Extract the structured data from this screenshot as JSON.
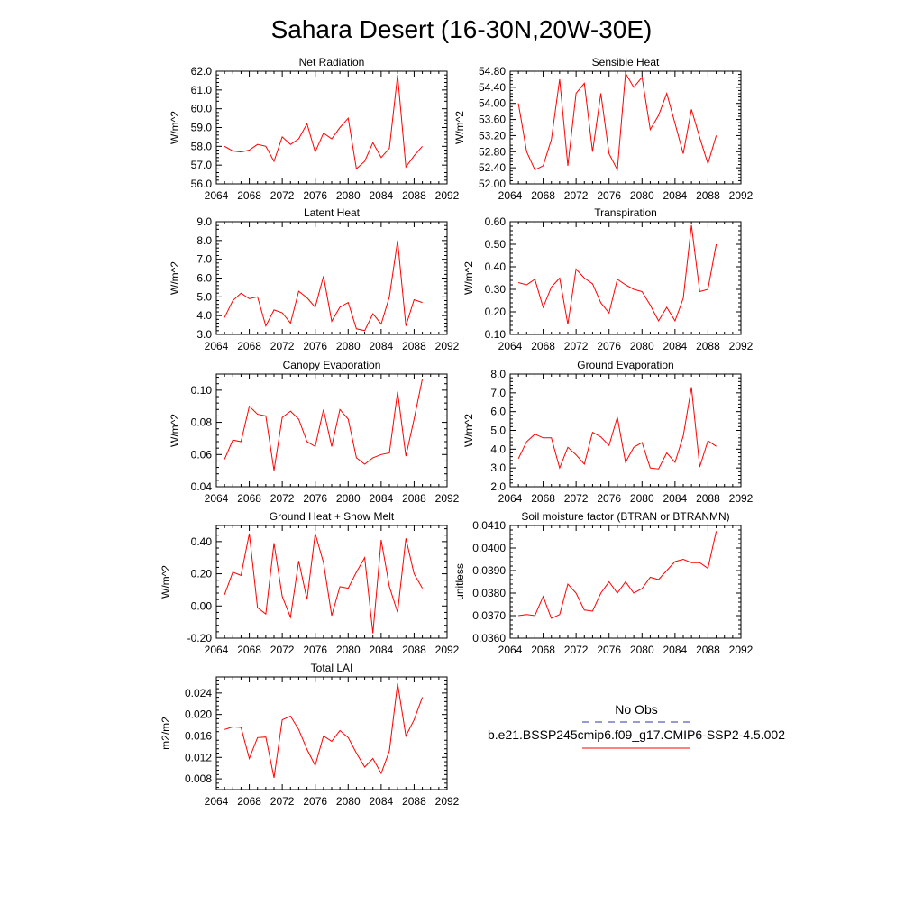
{
  "title": "Sahara Desert (16-30N,20W-30E)",
  "colors": {
    "model": "#ff0000",
    "obs": "#3333aa",
    "axis": "#000000"
  },
  "legend": {
    "obs_label": "No Obs",
    "model_label": "b.e21.BSSP245cmip6.f09_g17.CMIP6-SSP2-4.5.002"
  },
  "chart_data": [
    {
      "type": "line",
      "title": "Net Radiation",
      "ylabel": "W/m^2",
      "xlim": [
        2064,
        2092
      ],
      "xticks": [
        2064,
        2068,
        2072,
        2076,
        2080,
        2084,
        2088,
        2092
      ],
      "ylim": [
        56.0,
        62.0
      ],
      "yticks": [
        "56.0",
        "57.0",
        "58.0",
        "59.0",
        "60.0",
        "61.0",
        "62.0"
      ],
      "x": [
        2065,
        2066,
        2067,
        2068,
        2069,
        2070,
        2071,
        2072,
        2073,
        2074,
        2075,
        2076,
        2077,
        2078,
        2079,
        2080,
        2081,
        2082,
        2083,
        2084,
        2085,
        2086,
        2087,
        2088,
        2089
      ],
      "series": [
        {
          "values": [
            58.0,
            57.75,
            57.7,
            57.8,
            58.1,
            58.0,
            57.2,
            58.5,
            58.1,
            58.4,
            59.2,
            57.7,
            58.7,
            58.4,
            59.0,
            59.5,
            56.8,
            57.2,
            58.2,
            57.4,
            57.9,
            61.8,
            56.9,
            57.5,
            58.0
          ]
        }
      ]
    },
    {
      "type": "line",
      "title": "Sensible Heat",
      "ylabel": "W/m^2",
      "xlim": [
        2064,
        2092
      ],
      "xticks": [
        2064,
        2068,
        2072,
        2076,
        2080,
        2084,
        2088,
        2092
      ],
      "ylim": [
        52.0,
        54.8
      ],
      "yticks": [
        "52.00",
        "52.40",
        "52.80",
        "53.20",
        "53.60",
        "54.00",
        "54.40",
        "54.80"
      ],
      "x": [
        2065,
        2066,
        2067,
        2068,
        2069,
        2070,
        2071,
        2072,
        2073,
        2074,
        2075,
        2076,
        2077,
        2078,
        2079,
        2080,
        2081,
        2082,
        2083,
        2084,
        2085,
        2086,
        2087,
        2088,
        2089
      ],
      "series": [
        {
          "values": [
            54.0,
            52.8,
            52.35,
            52.45,
            53.1,
            54.6,
            52.45,
            54.25,
            54.5,
            52.8,
            54.25,
            52.75,
            52.35,
            54.75,
            54.4,
            54.65,
            53.35,
            53.7,
            54.25,
            53.5,
            52.75,
            53.85,
            53.15,
            52.5,
            53.2
          ]
        }
      ]
    },
    {
      "type": "line",
      "title": "Latent Heat",
      "ylabel": "W/m^2",
      "xlim": [
        2064,
        2092
      ],
      "xticks": [
        2064,
        2068,
        2072,
        2076,
        2080,
        2084,
        2088,
        2092
      ],
      "ylim": [
        3.0,
        9.0
      ],
      "yticks": [
        "3.0",
        "4.0",
        "5.0",
        "6.0",
        "7.0",
        "8.0",
        "9.0"
      ],
      "x": [
        2065,
        2066,
        2067,
        2068,
        2069,
        2070,
        2071,
        2072,
        2073,
        2074,
        2075,
        2076,
        2077,
        2078,
        2079,
        2080,
        2081,
        2082,
        2083,
        2084,
        2085,
        2086,
        2087,
        2088,
        2089
      ],
      "series": [
        {
          "values": [
            3.9,
            4.8,
            5.2,
            4.9,
            5.0,
            3.45,
            4.3,
            4.15,
            3.6,
            5.3,
            4.95,
            4.45,
            6.1,
            3.7,
            4.45,
            4.7,
            3.3,
            3.2,
            4.1,
            3.55,
            5.0,
            8.0,
            3.45,
            4.85,
            4.7
          ]
        }
      ]
    },
    {
      "type": "line",
      "title": "Transpiration",
      "ylabel": "W/m^2",
      "xlim": [
        2064,
        2092
      ],
      "xticks": [
        2064,
        2068,
        2072,
        2076,
        2080,
        2084,
        2088,
        2092
      ],
      "ylim": [
        0.1,
        0.6
      ],
      "yticks": [
        "0.10",
        "0.20",
        "0.30",
        "0.40",
        "0.50",
        "0.60"
      ],
      "x": [
        2065,
        2066,
        2067,
        2068,
        2069,
        2070,
        2071,
        2072,
        2073,
        2074,
        2075,
        2076,
        2077,
        2078,
        2079,
        2080,
        2081,
        2082,
        2083,
        2084,
        2085,
        2086,
        2087,
        2088,
        2089
      ],
      "series": [
        {
          "values": [
            0.33,
            0.32,
            0.345,
            0.22,
            0.31,
            0.35,
            0.145,
            0.39,
            0.35,
            0.325,
            0.24,
            0.195,
            0.345,
            0.32,
            0.3,
            0.29,
            0.23,
            0.16,
            0.22,
            0.16,
            0.26,
            0.585,
            0.29,
            0.3,
            0.5
          ]
        }
      ]
    },
    {
      "type": "line",
      "title": "Canopy Evaporation",
      "ylabel": "W/m^2",
      "xlim": [
        2064,
        2092
      ],
      "xticks": [
        2064,
        2068,
        2072,
        2076,
        2080,
        2084,
        2088,
        2092
      ],
      "ylim": [
        0.04,
        0.11
      ],
      "yticks": [
        "0.04",
        "0.06",
        "0.08",
        "0.10"
      ],
      "ytick_values": [
        0.04,
        0.06,
        0.08,
        0.1
      ],
      "x": [
        2065,
        2066,
        2067,
        2068,
        2069,
        2070,
        2071,
        2072,
        2073,
        2074,
        2075,
        2076,
        2077,
        2078,
        2079,
        2080,
        2081,
        2082,
        2083,
        2084,
        2085,
        2086,
        2087,
        2088,
        2089
      ],
      "series": [
        {
          "values": [
            0.057,
            0.069,
            0.068,
            0.09,
            0.085,
            0.084,
            0.05,
            0.083,
            0.087,
            0.082,
            0.068,
            0.065,
            0.088,
            0.065,
            0.088,
            0.082,
            0.058,
            0.054,
            0.058,
            0.06,
            0.061,
            0.099,
            0.059,
            0.082,
            0.107
          ]
        }
      ]
    },
    {
      "type": "line",
      "title": "Ground Evaporation",
      "ylabel": "W/m^2",
      "xlim": [
        2064,
        2092
      ],
      "xticks": [
        2064,
        2068,
        2072,
        2076,
        2080,
        2084,
        2088,
        2092
      ],
      "ylim": [
        2.0,
        8.0
      ],
      "yticks": [
        "2.0",
        "3.0",
        "4.0",
        "5.0",
        "6.0",
        "7.0",
        "8.0"
      ],
      "x": [
        2065,
        2066,
        2067,
        2068,
        2069,
        2070,
        2071,
        2072,
        2073,
        2074,
        2075,
        2076,
        2077,
        2078,
        2079,
        2080,
        2081,
        2082,
        2083,
        2084,
        2085,
        2086,
        2087,
        2088,
        2089
      ],
      "series": [
        {
          "values": [
            3.5,
            4.4,
            4.8,
            4.6,
            4.6,
            3.0,
            4.1,
            3.7,
            3.2,
            4.9,
            4.65,
            4.2,
            5.7,
            3.3,
            4.1,
            4.35,
            3.0,
            2.95,
            3.8,
            3.3,
            4.7,
            7.3,
            3.05,
            4.45,
            4.15
          ]
        }
      ]
    },
    {
      "type": "line",
      "title": "Ground Heat + Snow Melt",
      "ylabel": "W/m^2",
      "xlim": [
        2064,
        2092
      ],
      "xticks": [
        2064,
        2068,
        2072,
        2076,
        2080,
        2084,
        2088,
        2092
      ],
      "ylim": [
        -0.2,
        0.5
      ],
      "yticks": [
        "-0.20",
        "0.00",
        "0.20",
        "0.40"
      ],
      "ytick_values": [
        -0.2,
        0.0,
        0.2,
        0.4
      ],
      "x": [
        2065,
        2066,
        2067,
        2068,
        2069,
        2070,
        2071,
        2072,
        2073,
        2074,
        2075,
        2076,
        2077,
        2078,
        2079,
        2080,
        2081,
        2082,
        2083,
        2084,
        2085,
        2086,
        2087,
        2088,
        2089
      ],
      "series": [
        {
          "values": [
            0.07,
            0.21,
            0.19,
            0.45,
            -0.01,
            -0.05,
            0.39,
            0.06,
            -0.07,
            0.28,
            0.04,
            0.45,
            0.27,
            -0.06,
            0.12,
            0.11,
            0.21,
            0.3,
            -0.17,
            0.41,
            0.12,
            -0.04,
            0.42,
            0.2,
            0.11
          ]
        }
      ]
    },
    {
      "type": "line",
      "title": "Soil moisture factor (BTRAN or BTRANMN)",
      "ylabel": "unitless",
      "xlim": [
        2064,
        2092
      ],
      "xticks": [
        2064,
        2068,
        2072,
        2076,
        2080,
        2084,
        2088,
        2092
      ],
      "ylim": [
        0.036,
        0.041
      ],
      "yticks": [
        "0.0360",
        "0.0370",
        "0.0380",
        "0.0390",
        "0.0400",
        "0.0410"
      ],
      "x": [
        2065,
        2066,
        2067,
        2068,
        2069,
        2070,
        2071,
        2072,
        2073,
        2074,
        2075,
        2076,
        2077,
        2078,
        2079,
        2080,
        2081,
        2082,
        2083,
        2084,
        2085,
        2086,
        2087,
        2088,
        2089
      ],
      "series": [
        {
          "values": [
            0.037,
            0.03705,
            0.037,
            0.03785,
            0.03688,
            0.03705,
            0.0384,
            0.038,
            0.03725,
            0.0372,
            0.038,
            0.0385,
            0.038,
            0.0385,
            0.038,
            0.0382,
            0.0387,
            0.0386,
            0.039,
            0.0394,
            0.0395,
            0.03935,
            0.03935,
            0.0391,
            0.04075
          ]
        }
      ]
    },
    {
      "type": "line",
      "title": "Total LAI",
      "ylabel": "m2/m2",
      "xlim": [
        2064,
        2092
      ],
      "xticks": [
        2064,
        2068,
        2072,
        2076,
        2080,
        2084,
        2088,
        2092
      ],
      "ylim": [
        0.006,
        0.027
      ],
      "yticks": [
        "0.008",
        "0.012",
        "0.016",
        "0.020",
        "0.024"
      ],
      "ytick_values": [
        0.008,
        0.012,
        0.016,
        0.02,
        0.024
      ],
      "x": [
        2065,
        2066,
        2067,
        2068,
        2069,
        2070,
        2071,
        2072,
        2073,
        2074,
        2075,
        2076,
        2077,
        2078,
        2079,
        2080,
        2081,
        2082,
        2083,
        2084,
        2085,
        2086,
        2087,
        2088,
        2089
      ],
      "series": [
        {
          "values": [
            0.0172,
            0.0177,
            0.0176,
            0.0118,
            0.0157,
            0.0158,
            0.0082,
            0.019,
            0.0197,
            0.0172,
            0.0135,
            0.0105,
            0.016,
            0.015,
            0.017,
            0.0157,
            0.0128,
            0.0102,
            0.0118,
            0.009,
            0.0132,
            0.0258,
            0.016,
            0.019,
            0.0232
          ]
        }
      ]
    }
  ]
}
